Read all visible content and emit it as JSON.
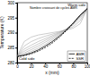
{
  "chart_data": {
    "type": "line",
    "x_label": "x (mm)",
    "y_label": "Temperature (K)",
    "annotations": [
      "Nombre croissant de cycles AMR",
      "Warm side",
      "Cold side"
    ],
    "x": [
      0,
      10,
      20,
      30,
      40,
      50,
      60,
      70,
      80,
      90,
      100
    ],
    "xlim": [
      0,
      100
    ],
    "xticks": [
      0,
      20,
      40,
      60,
      80,
      100
    ],
    "ylim": [
      280,
      300
    ],
    "yticks": [
      280,
      285,
      290,
      295,
      300
    ],
    "legend": "lower right",
    "series": [
      {
        "color": "#9a9a9a",
        "values": [
          282,
          287,
          288.5,
          289.2,
          289.6,
          290,
          290.4,
          290.8,
          291.5,
          293,
          298
        ]
      },
      {
        "color": "#9a9a9a",
        "values": [
          282,
          285.5,
          287,
          288,
          288.8,
          289.5,
          290.2,
          291,
          292,
          294,
          298
        ]
      },
      {
        "color": "#9a9a9a",
        "values": [
          282,
          284.5,
          285.8,
          287,
          288,
          289,
          290,
          291.2,
          292.6,
          294.8,
          298
        ]
      },
      {
        "color": "#9a9a9a",
        "values": [
          282,
          283.8,
          285,
          286.2,
          287.4,
          288.6,
          289.8,
          291.2,
          293,
          295.3,
          298
        ]
      },
      {
        "color": "#9a9a9a",
        "values": [
          282,
          283.2,
          284.3,
          285.5,
          286.8,
          288.1,
          289.5,
          291.1,
          293.2,
          295.6,
          298
        ]
      },
      {
        "color": "#9a9a9a",
        "values": [
          282,
          282.8,
          283.7,
          284.8,
          286.1,
          287.6,
          289.2,
          291,
          293.3,
          295.8,
          298
        ]
      },
      {
        "name": "AMR",
        "color": "#000000",
        "line_style": "solid",
        "values": [
          282,
          282.5,
          283.2,
          284.2,
          285.5,
          287,
          288.8,
          290.8,
          293.2,
          295.9,
          298
        ]
      },
      {
        "name": "SSR",
        "color": "#000000",
        "line_style": "dashed",
        "values": [
          282,
          282.3,
          282.9,
          283.8,
          285,
          286.5,
          288.4,
          290.6,
          293.1,
          295.8,
          298
        ]
      }
    ]
  }
}
